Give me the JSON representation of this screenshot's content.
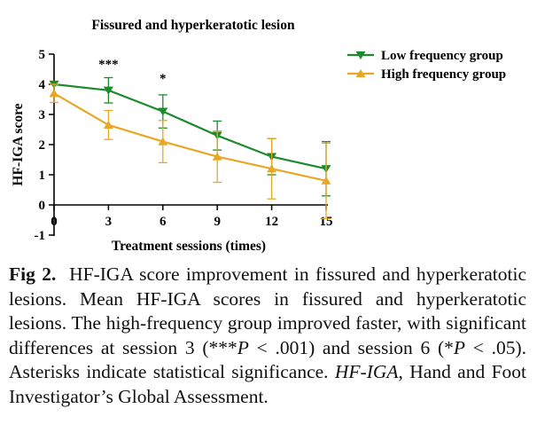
{
  "chart_data": {
    "type": "line",
    "title": "Fissured and hyperkeratotic lesion",
    "xlabel": "Treatment sessions (times)",
    "ylabel": "HF-IGA score",
    "x": [
      0,
      3,
      6,
      9,
      12,
      15
    ],
    "x_ticks": [
      "0",
      "3",
      "6",
      "9",
      "12",
      "15"
    ],
    "y_ticks": [
      "-1",
      "0",
      "1",
      "2",
      "3",
      "4",
      "5"
    ],
    "ylim": [
      -1,
      5
    ],
    "xlim": [
      0,
      15
    ],
    "legend_position": "top-right",
    "series": [
      {
        "name": "Low frequency group",
        "color": "#1e8a2e",
        "marker": "triangle-down",
        "values": [
          4.0,
          3.8,
          3.1,
          2.3,
          1.6,
          1.2
        ],
        "error": [
          0.0,
          0.42,
          0.55,
          0.48,
          0.6,
          0.9
        ]
      },
      {
        "name": "High frequency group",
        "color": "#e6a826",
        "marker": "triangle-up",
        "values": [
          3.7,
          2.65,
          2.1,
          1.6,
          1.2,
          0.8
        ],
        "error": [
          0.3,
          0.48,
          0.7,
          0.85,
          1.0,
          1.25
        ]
      }
    ],
    "annotations": [
      {
        "x": 3,
        "text": "***"
      },
      {
        "x": 6,
        "text": "*"
      }
    ]
  },
  "caption": {
    "label": "Fig 2.",
    "text_1": "HF-IGA score improvement in fissured and hyperkeratotic lesions. Mean HF-IGA scores in fissured and hyperkeratotic lesions. The high-frequency group improved faster, with significant differences at session 3 (***",
    "p1_var": "P",
    "text_2": " < .001) and session 6 (*",
    "p2_var": "P",
    "text_3": " < .05). Asterisks indicate statistical significance. ",
    "abbr": "HF-IGA",
    "text_4": ", Hand and Foot Investigator’s Global Assessment."
  }
}
